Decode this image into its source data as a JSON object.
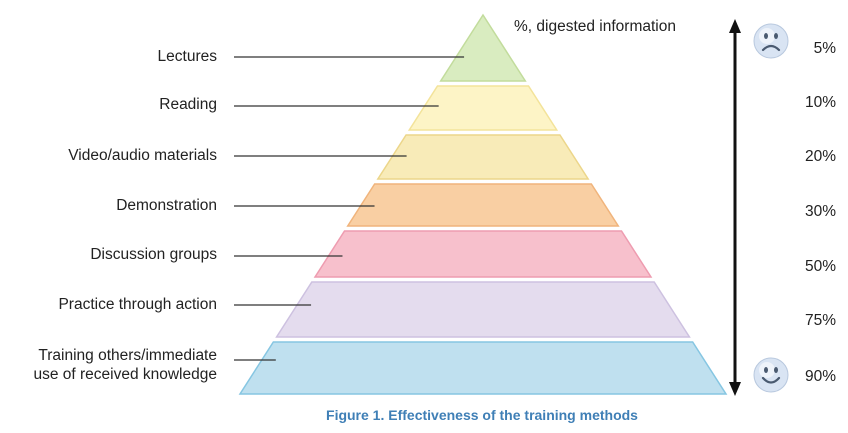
{
  "header": "%, digested information",
  "caption": "Figure 1. Effectiveness of the training methods",
  "caption_color": "#3f7fb6",
  "levels": [
    {
      "label": "Lectures",
      "percent": "5%",
      "fill": "#d9ecc0",
      "edge": "#c2dc9c"
    },
    {
      "label": "Reading",
      "percent": "10%",
      "fill": "#fdf4c6",
      "edge": "#f3e39a"
    },
    {
      "label": "Video/audio materials",
      "percent": "20%",
      "fill": "#f8ebb8",
      "edge": "#ecd68a"
    },
    {
      "label": "Demonstration",
      "percent": "30%",
      "fill": "#f9cfa3",
      "edge": "#f0b47c"
    },
    {
      "label": "Discussion groups",
      "percent": "50%",
      "fill": "#f7c0cc",
      "edge": "#ee9cb0"
    },
    {
      "label": "Practice through action",
      "percent": "75%",
      "fill": "#e4dcee",
      "edge": "#cdc1e0"
    },
    {
      "label_lines": [
        "Training others/immediate",
        "use of received knowledge"
      ],
      "percent": "90%",
      "fill": "#bfe0ef",
      "edge": "#86c6e2"
    }
  ],
  "icons": {
    "top": "sad-face-icon",
    "bottom": "happy-face-icon"
  }
}
